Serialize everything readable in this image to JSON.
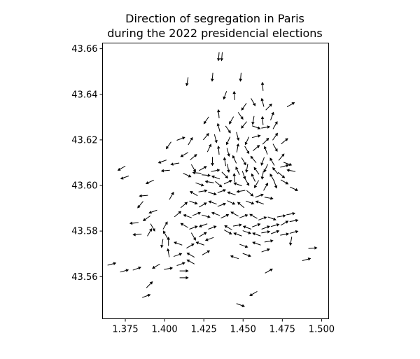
{
  "chart_data": {
    "type": "quiver",
    "title": [
      "Direction of segregation in Paris",
      "during the 2022 presidencial elections"
    ],
    "xlabel": "",
    "ylabel": "",
    "xlim": [
      1.3605,
      1.5045
    ],
    "ylim": [
      43.5415,
      43.6625
    ],
    "xticks": [
      1.375,
      1.4,
      1.425,
      1.45,
      1.475,
      1.5
    ],
    "xtick_labels": [
      "1.375",
      "1.400",
      "1.425",
      "1.450",
      "1.475",
      "1.500"
    ],
    "yticks": [
      43.56,
      43.58,
      43.6,
      43.62,
      43.64,
      43.66
    ],
    "ytick_labels": [
      "43.56",
      "43.58",
      "43.60",
      "43.62",
      "43.64",
      "43.66"
    ],
    "grid": false,
    "color": "#000000",
    "arrows": [
      {
        "x": 1.4345,
        "y": 43.6565,
        "angle": -95
      },
      {
        "x": 1.4365,
        "y": 43.6565,
        "angle": -95
      },
      {
        "x": 1.4145,
        "y": 43.6455,
        "angle": -100
      },
      {
        "x": 1.4305,
        "y": 43.6475,
        "angle": -95
      },
      {
        "x": 1.4485,
        "y": 43.6475,
        "angle": -95
      },
      {
        "x": 1.4385,
        "y": 43.6395,
        "angle": -110
      },
      {
        "x": 1.4445,
        "y": 43.6395,
        "angle": 95
      },
      {
        "x": 1.4625,
        "y": 43.6435,
        "angle": 95
      },
      {
        "x": 1.4505,
        "y": 43.6345,
        "angle": -125
      },
      {
        "x": 1.4565,
        "y": 43.6365,
        "angle": -60
      },
      {
        "x": 1.4625,
        "y": 43.6365,
        "angle": 105
      },
      {
        "x": 1.4665,
        "y": 43.6345,
        "angle": 45
      },
      {
        "x": 1.4805,
        "y": 43.6355,
        "angle": 30
      },
      {
        "x": 1.4345,
        "y": 43.6315,
        "angle": 95
      },
      {
        "x": 1.4425,
        "y": 43.6285,
        "angle": -120
      },
      {
        "x": 1.4485,
        "y": 43.6305,
        "angle": -55
      },
      {
        "x": 1.4565,
        "y": 43.6285,
        "angle": -100
      },
      {
        "x": 1.4625,
        "y": 43.6285,
        "angle": 95
      },
      {
        "x": 1.4685,
        "y": 43.6305,
        "angle": 70
      },
      {
        "x": 1.4265,
        "y": 43.6285,
        "angle": -125
      },
      {
        "x": 1.4345,
        "y": 43.6255,
        "angle": 105
      },
      {
        "x": 1.4405,
        "y": 43.6245,
        "angle": -55
      },
      {
        "x": 1.4505,
        "y": 43.6265,
        "angle": -130
      },
      {
        "x": 1.4585,
        "y": 43.6255,
        "angle": -20
      },
      {
        "x": 1.4645,
        "y": 43.6255,
        "angle": 10
      },
      {
        "x": 1.4705,
        "y": 43.6265,
        "angle": 60
      },
      {
        "x": 1.4265,
        "y": 43.6215,
        "angle": 50
      },
      {
        "x": 1.4325,
        "y": 43.6205,
        "angle": -75
      },
      {
        "x": 1.4405,
        "y": 43.6195,
        "angle": -115
      },
      {
        "x": 1.4465,
        "y": 43.6215,
        "angle": -75
      },
      {
        "x": 1.4525,
        "y": 43.6195,
        "angle": -115
      },
      {
        "x": 1.4585,
        "y": 43.6215,
        "angle": 15
      },
      {
        "x": 1.4645,
        "y": 43.6195,
        "angle": 45
      },
      {
        "x": 1.4705,
        "y": 43.6215,
        "angle": 55
      },
      {
        "x": 1.4105,
        "y": 43.6205,
        "angle": 20
      },
      {
        "x": 1.4165,
        "y": 43.6195,
        "angle": 60
      },
      {
        "x": 1.4025,
        "y": 43.6175,
        "angle": -125
      },
      {
        "x": 1.4285,
        "y": 43.6165,
        "angle": 65
      },
      {
        "x": 1.4345,
        "y": 43.6155,
        "angle": 95
      },
      {
        "x": 1.4405,
        "y": 43.6145,
        "angle": -75
      },
      {
        "x": 1.4465,
        "y": 43.6165,
        "angle": 80
      },
      {
        "x": 1.4525,
        "y": 43.6155,
        "angle": -60
      },
      {
        "x": 1.4585,
        "y": 43.6165,
        "angle": 40
      },
      {
        "x": 1.4645,
        "y": 43.6155,
        "angle": 110
      },
      {
        "x": 1.4705,
        "y": 43.6165,
        "angle": -60
      },
      {
        "x": 1.4765,
        "y": 43.6195,
        "angle": 40
      },
      {
        "x": 1.4125,
        "y": 43.6135,
        "angle": -150
      },
      {
        "x": 1.4185,
        "y": 43.6125,
        "angle": 40
      },
      {
        "x": 1.4305,
        "y": 43.6105,
        "angle": -90
      },
      {
        "x": 1.4385,
        "y": 43.6105,
        "angle": 100
      },
      {
        "x": 1.4445,
        "y": 43.6115,
        "angle": 115
      },
      {
        "x": 1.4505,
        "y": 43.6105,
        "angle": -60
      },
      {
        "x": 1.4565,
        "y": 43.6115,
        "angle": 130
      },
      {
        "x": 1.4625,
        "y": 43.6105,
        "angle": -110
      },
      {
        "x": 1.4685,
        "y": 43.6105,
        "angle": 120
      },
      {
        "x": 1.4745,
        "y": 43.6125,
        "angle": 50
      },
      {
        "x": 1.4785,
        "y": 43.6095,
        "angle": -20
      },
      {
        "x": 1.3985,
        "y": 43.6105,
        "angle": -160
      },
      {
        "x": 1.4065,
        "y": 43.6095,
        "angle": -170
      },
      {
        "x": 1.4185,
        "y": 43.6075,
        "angle": -60
      },
      {
        "x": 1.4245,
        "y": 43.6075,
        "angle": 30
      },
      {
        "x": 1.4325,
        "y": 43.6065,
        "angle": 10
      },
      {
        "x": 1.4405,
        "y": 43.6075,
        "angle": -80
      },
      {
        "x": 1.4465,
        "y": 43.6065,
        "angle": 115
      },
      {
        "x": 1.4525,
        "y": 43.6075,
        "angle": -100
      },
      {
        "x": 1.4585,
        "y": 43.6065,
        "angle": 125
      },
      {
        "x": 1.4645,
        "y": 43.6075,
        "angle": -115
      },
      {
        "x": 1.4705,
        "y": 43.6065,
        "angle": 130
      },
      {
        "x": 1.4765,
        "y": 43.6085,
        "angle": 15
      },
      {
        "x": 1.4805,
        "y": 43.6065,
        "angle": 170
      },
      {
        "x": 1.4005,
        "y": 43.6065,
        "angle": -175
      },
      {
        "x": 1.4145,
        "y": 43.6045,
        "angle": -25
      },
      {
        "x": 1.4205,
        "y": 43.6055,
        "angle": 175
      },
      {
        "x": 1.4265,
        "y": 43.6045,
        "angle": -5
      },
      {
        "x": 1.4325,
        "y": 43.6035,
        "angle": 160
      },
      {
        "x": 1.4385,
        "y": 43.6045,
        "angle": -45
      },
      {
        "x": 1.4445,
        "y": 43.6035,
        "angle": 95
      },
      {
        "x": 1.4505,
        "y": 43.6045,
        "angle": -70
      },
      {
        "x": 1.4565,
        "y": 43.6035,
        "angle": 115
      },
      {
        "x": 1.4625,
        "y": 43.6045,
        "angle": -100
      },
      {
        "x": 1.4685,
        "y": 43.6035,
        "angle": 120
      },
      {
        "x": 1.4745,
        "y": 43.6045,
        "angle": -40
      },
      {
        "x": 1.3725,
        "y": 43.6075,
        "angle": -150
      },
      {
        "x": 1.3745,
        "y": 43.6035,
        "angle": -160
      },
      {
        "x": 1.3905,
        "y": 43.6015,
        "angle": -155
      },
      {
        "x": 1.4225,
        "y": 43.6005,
        "angle": -20
      },
      {
        "x": 1.4285,
        "y": 43.6015,
        "angle": 170
      },
      {
        "x": 1.4345,
        "y": 43.6005,
        "angle": -40
      },
      {
        "x": 1.4405,
        "y": 43.6015,
        "angle": 25
      },
      {
        "x": 1.4465,
        "y": 43.6005,
        "angle": 160
      },
      {
        "x": 1.4525,
        "y": 43.6015,
        "angle": -60
      },
      {
        "x": 1.4585,
        "y": 43.6005,
        "angle": -120
      },
      {
        "x": 1.4645,
        "y": 43.5995,
        "angle": 60
      },
      {
        "x": 1.4705,
        "y": 43.6005,
        "angle": -70
      },
      {
        "x": 1.4765,
        "y": 43.6015,
        "angle": -30
      },
      {
        "x": 1.4825,
        "y": 43.5985,
        "angle": -25
      },
      {
        "x": 1.3865,
        "y": 43.5955,
        "angle": -175
      },
      {
        "x": 1.4045,
        "y": 43.5955,
        "angle": 60
      },
      {
        "x": 1.4185,
        "y": 43.5965,
        "angle": 150
      },
      {
        "x": 1.4245,
        "y": 43.5975,
        "angle": 10
      },
      {
        "x": 1.4305,
        "y": 43.5965,
        "angle": -15
      },
      {
        "x": 1.4365,
        "y": 43.5975,
        "angle": 20
      },
      {
        "x": 1.4425,
        "y": 43.5965,
        "angle": 160
      },
      {
        "x": 1.4485,
        "y": 43.5975,
        "angle": -170
      },
      {
        "x": 1.4545,
        "y": 43.5965,
        "angle": -40
      },
      {
        "x": 1.4605,
        "y": 43.5955,
        "angle": 20
      },
      {
        "x": 1.4665,
        "y": 43.5945,
        "angle": -10
      },
      {
        "x": 1.3845,
        "y": 43.5915,
        "angle": -130
      },
      {
        "x": 1.4125,
        "y": 43.5915,
        "angle": 40
      },
      {
        "x": 1.4185,
        "y": 43.5925,
        "angle": -20
      },
      {
        "x": 1.4245,
        "y": 43.5915,
        "angle": 30
      },
      {
        "x": 1.4305,
        "y": 43.5925,
        "angle": 160
      },
      {
        "x": 1.4365,
        "y": 43.5915,
        "angle": 20
      },
      {
        "x": 1.4425,
        "y": 43.5925,
        "angle": -25
      },
      {
        "x": 1.4485,
        "y": 43.5915,
        "angle": 140
      },
      {
        "x": 1.4545,
        "y": 43.5925,
        "angle": -20
      },
      {
        "x": 1.4605,
        "y": 43.5925,
        "angle": 160
      },
      {
        "x": 1.3925,
        "y": 43.5885,
        "angle": -160
      },
      {
        "x": 1.3885,
        "y": 43.5855,
        "angle": -145
      },
      {
        "x": 1.4085,
        "y": 43.5875,
        "angle": 40
      },
      {
        "x": 1.4145,
        "y": 43.5865,
        "angle": 160
      },
      {
        "x": 1.4205,
        "y": 43.5875,
        "angle": 20
      },
      {
        "x": 1.4265,
        "y": 43.5865,
        "angle": -15
      },
      {
        "x": 1.4325,
        "y": 43.5875,
        "angle": 160
      },
      {
        "x": 1.4385,
        "y": 43.5865,
        "angle": 25
      },
      {
        "x": 1.4445,
        "y": 43.5875,
        "angle": 150
      },
      {
        "x": 1.4505,
        "y": 43.5865,
        "angle": 20
      },
      {
        "x": 1.4565,
        "y": 43.5865,
        "angle": 150
      },
      {
        "x": 1.4625,
        "y": 43.5855,
        "angle": 20
      },
      {
        "x": 1.4685,
        "y": 43.5855,
        "angle": -20
      },
      {
        "x": 1.4745,
        "y": 43.5865,
        "angle": 10
      },
      {
        "x": 1.4805,
        "y": 43.5875,
        "angle": 10
      },
      {
        "x": 1.3805,
        "y": 43.5835,
        "angle": -175
      },
      {
        "x": 1.3925,
        "y": 43.5815,
        "angle": -60
      },
      {
        "x": 1.4005,
        "y": 43.5825,
        "angle": 60
      },
      {
        "x": 1.4125,
        "y": 43.5825,
        "angle": 150
      },
      {
        "x": 1.4185,
        "y": 43.5815,
        "angle": 20
      },
      {
        "x": 1.4245,
        "y": 43.5825,
        "angle": -160
      },
      {
        "x": 1.4305,
        "y": 43.5815,
        "angle": 20
      },
      {
        "x": 1.4405,
        "y": 43.5815,
        "angle": 150
      },
      {
        "x": 1.4465,
        "y": 43.5825,
        "angle": 10
      },
      {
        "x": 1.4525,
        "y": 43.5815,
        "angle": 160
      },
      {
        "x": 1.4585,
        "y": 43.5825,
        "angle": 20
      },
      {
        "x": 1.4645,
        "y": 43.5815,
        "angle": 20
      },
      {
        "x": 1.4705,
        "y": 43.5825,
        "angle": 15
      },
      {
        "x": 1.4765,
        "y": 43.5835,
        "angle": 30
      },
      {
        "x": 1.4825,
        "y": 43.5845,
        "angle": 10
      },
      {
        "x": 1.3825,
        "y": 43.5785,
        "angle": -175
      },
      {
        "x": 1.3905,
        "y": 43.5795,
        "angle": 60
      },
      {
        "x": 1.4005,
        "y": 43.5785,
        "angle": 120
      },
      {
        "x": 1.4185,
        "y": 43.5775,
        "angle": -60
      },
      {
        "x": 1.4245,
        "y": 43.5785,
        "angle": 30
      },
      {
        "x": 1.4285,
        "y": 43.5765,
        "angle": -160
      },
      {
        "x": 1.4405,
        "y": 43.5795,
        "angle": -30
      },
      {
        "x": 1.4465,
        "y": 43.5785,
        "angle": 160
      },
      {
        "x": 1.4525,
        "y": 43.5795,
        "angle": -20
      },
      {
        "x": 1.4585,
        "y": 43.5785,
        "angle": 160
      },
      {
        "x": 1.4645,
        "y": 43.5795,
        "angle": 10
      },
      {
        "x": 1.4705,
        "y": 43.5795,
        "angle": 20
      },
      {
        "x": 1.4765,
        "y": 43.5785,
        "angle": 10
      },
      {
        "x": 1.4825,
        "y": 43.5795,
        "angle": 15
      },
      {
        "x": 1.3985,
        "y": 43.5745,
        "angle": -100
      },
      {
        "x": 1.4025,
        "y": 43.5755,
        "angle": 90
      },
      {
        "x": 1.4085,
        "y": 43.5745,
        "angle": 160
      },
      {
        "x": 1.4165,
        "y": 43.5735,
        "angle": 30
      },
      {
        "x": 1.4225,
        "y": 43.5745,
        "angle": 160
      },
      {
        "x": 1.4505,
        "y": 43.5735,
        "angle": -20
      },
      {
        "x": 1.4585,
        "y": 43.5745,
        "angle": 160
      },
      {
        "x": 1.4665,
        "y": 43.5755,
        "angle": 10
      },
      {
        "x": 1.4805,
        "y": 43.5755,
        "angle": -100
      },
      {
        "x": 1.4945,
        "y": 43.5725,
        "angle": 5
      },
      {
        "x": 1.4025,
        "y": 43.5705,
        "angle": 100
      },
      {
        "x": 1.4085,
        "y": 43.5695,
        "angle": 20
      },
      {
        "x": 1.4165,
        "y": 43.5695,
        "angle": 150
      },
      {
        "x": 1.4265,
        "y": 43.5705,
        "angle": 30
      },
      {
        "x": 1.4445,
        "y": 43.5685,
        "angle": 160
      },
      {
        "x": 1.4525,
        "y": 43.5695,
        "angle": -20
      },
      {
        "x": 1.4645,
        "y": 43.5715,
        "angle": 20
      },
      {
        "x": 1.4905,
        "y": 43.5675,
        "angle": 15
      },
      {
        "x": 1.4105,
        "y": 43.5655,
        "angle": 20
      },
      {
        "x": 1.4165,
        "y": 43.5665,
        "angle": 150
      },
      {
        "x": 1.3665,
        "y": 43.5655,
        "angle": 15
      },
      {
        "x": 1.3745,
        "y": 43.5625,
        "angle": 15
      },
      {
        "x": 1.3825,
        "y": 43.5635,
        "angle": 20
      },
      {
        "x": 1.3945,
        "y": 43.5645,
        "angle": -150
      },
      {
        "x": 1.4025,
        "y": 43.5635,
        "angle": 10
      },
      {
        "x": 1.4125,
        "y": 43.5625,
        "angle": 0
      },
      {
        "x": 1.4125,
        "y": 43.5595,
        "angle": 0
      },
      {
        "x": 1.4665,
        "y": 43.5625,
        "angle": 30
      },
      {
        "x": 1.3905,
        "y": 43.5565,
        "angle": 45
      },
      {
        "x": 1.3885,
        "y": 43.5515,
        "angle": 20
      },
      {
        "x": 1.4565,
        "y": 43.5525,
        "angle": -150
      },
      {
        "x": 1.4485,
        "y": 43.5475,
        "angle": -20
      }
    ]
  }
}
